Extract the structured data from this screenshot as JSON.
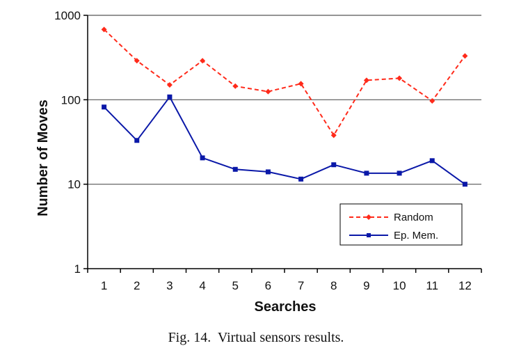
{
  "chart_data": {
    "type": "line",
    "xlabel": "Searches",
    "ylabel": "Number of Moves",
    "x": [
      1,
      2,
      3,
      4,
      5,
      6,
      7,
      8,
      9,
      10,
      11,
      12
    ],
    "x_tick_labels": [
      "1",
      "2",
      "3",
      "4",
      "5",
      "6",
      "7",
      "8",
      "9",
      "10",
      "11",
      "12"
    ],
    "y_scale": "log",
    "ylim": [
      1,
      1000
    ],
    "y_tick_labels": [
      "1",
      "10",
      "100",
      "1000"
    ],
    "grid": "horizontal at 10, 100, 1000",
    "legend_position": "bottom-right",
    "series": [
      {
        "name": "Random",
        "color": "#ff2a1a",
        "line_style": "dashed",
        "marker": "diamond",
        "values": [
          680,
          290,
          150,
          290,
          145,
          125,
          155,
          38,
          170,
          180,
          97,
          330
        ]
      },
      {
        "name": "Ep. Mem.",
        "color": "#0a18a8",
        "line_style": "solid",
        "marker": "square",
        "values": [
          82,
          33,
          108,
          20.5,
          15,
          14,
          11.5,
          17,
          13.5,
          13.5,
          19,
          10
        ]
      }
    ]
  },
  "caption": "Fig. 14.  Virtual sensors results."
}
